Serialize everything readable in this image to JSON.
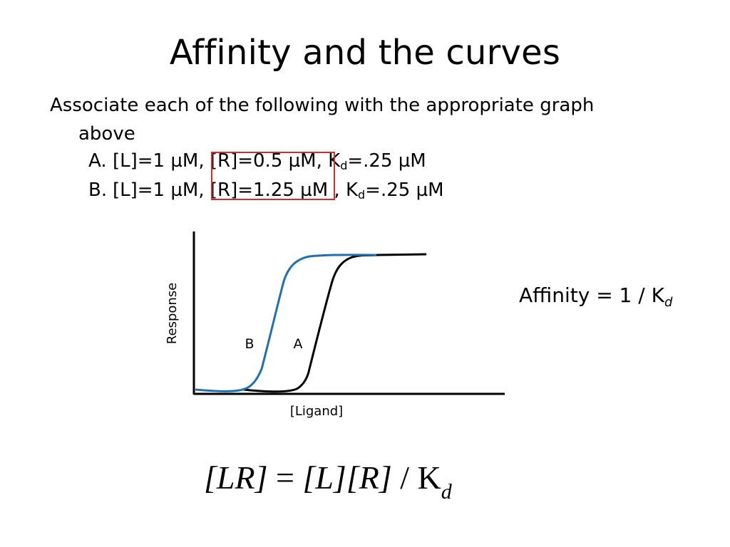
{
  "slide": {
    "title": "Affinity and the curves",
    "prompt_line1": "Associate each of the following with the appropriate graph",
    "prompt_line2": "above",
    "options": [
      {
        "marker": "A.",
        "l_text": "[L]=1 µM,",
        "r_text": "[R]=0.5 µM,",
        "k": "K",
        "k_sub": "d",
        "k_val": "=.25 µM"
      },
      {
        "marker": "B.",
        "l_text": "[L]=1 µM,",
        "r_text": "[R]=1.25 µM",
        "k": ", K",
        "k_sub": "d",
        "k_val": "=.25 µM"
      }
    ],
    "affinity_text": "Affinity = 1 / K",
    "affinity_sub": "d",
    "equation": {
      "lhs": "[LR]",
      "eq": "=",
      "l": "[L]",
      "r": "[R]",
      "div": "/",
      "k": "K",
      "sub": "d"
    }
  },
  "graph": {
    "ylabel": "Response",
    "xlabel": "[Ligand]",
    "curve_labels": {
      "b": "B",
      "a": "A"
    },
    "colors": {
      "curve_b": "#1f6fb2",
      "curve_a": "#000000",
      "axes": "#000000",
      "highlight": "#d42b2b"
    }
  }
}
